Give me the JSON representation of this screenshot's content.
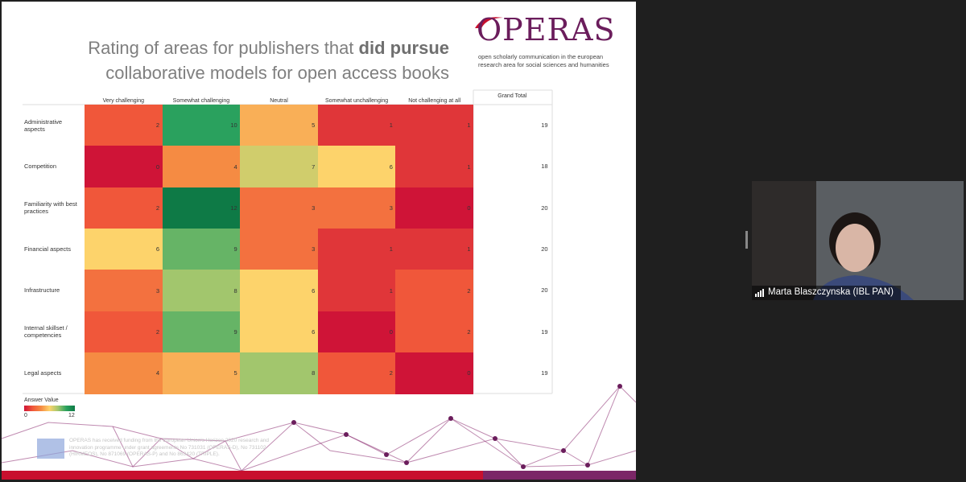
{
  "slide": {
    "title_start": "Rating of areas for publishers that",
    "title_bold": "did pursue",
    "title_line2": "collaborative models for open access books",
    "logo": "OPERAS",
    "logo_tagline_1": "open scholarly communication in the european",
    "logo_tagline_2": "research area for social sciences and humanities",
    "footer": "OPERAS has received funding from the European Union's Horizon 2020 research and innovation programme under grant agreements No 731031 (OPERAS-D), No 731102 (HIRMEOS), No 871069 (OPERAS-P) and No 863420 (TRIPLE)."
  },
  "chart_data": {
    "type": "heatmap",
    "x": [
      "Very challenging",
      "Somewhat challenging",
      "Neutral",
      "Somewhat unchallenging",
      "Not challenging at all"
    ],
    "y": [
      "Administrative aspects",
      "Competition",
      "Familiarity with best practices",
      "Financial aspects",
      "Infrastructure",
      "Internal skillset / competencies",
      "Legal aspects"
    ],
    "values": [
      [
        2,
        10,
        5,
        1,
        1
      ],
      [
        0,
        4,
        7,
        6,
        1
      ],
      [
        2,
        12,
        3,
        3,
        0
      ],
      [
        6,
        9,
        3,
        1,
        1
      ],
      [
        3,
        8,
        6,
        1,
        2
      ],
      [
        2,
        9,
        6,
        0,
        2
      ],
      [
        4,
        5,
        8,
        2,
        0
      ]
    ],
    "totals_label": "Grand Total",
    "totals": [
      19,
      18,
      20,
      20,
      20,
      19,
      19
    ],
    "legend_title": "Answer Value",
    "clim": [
      0,
      12
    ],
    "colors": [
      "#cf1437",
      "#f0573a",
      "#f58b43",
      "#fdd36b",
      "#a2c66d",
      "#2aa15e",
      "#0e7a46"
    ]
  },
  "participant": {
    "name": "Marta Blaszczynska (IBL PAN)"
  }
}
